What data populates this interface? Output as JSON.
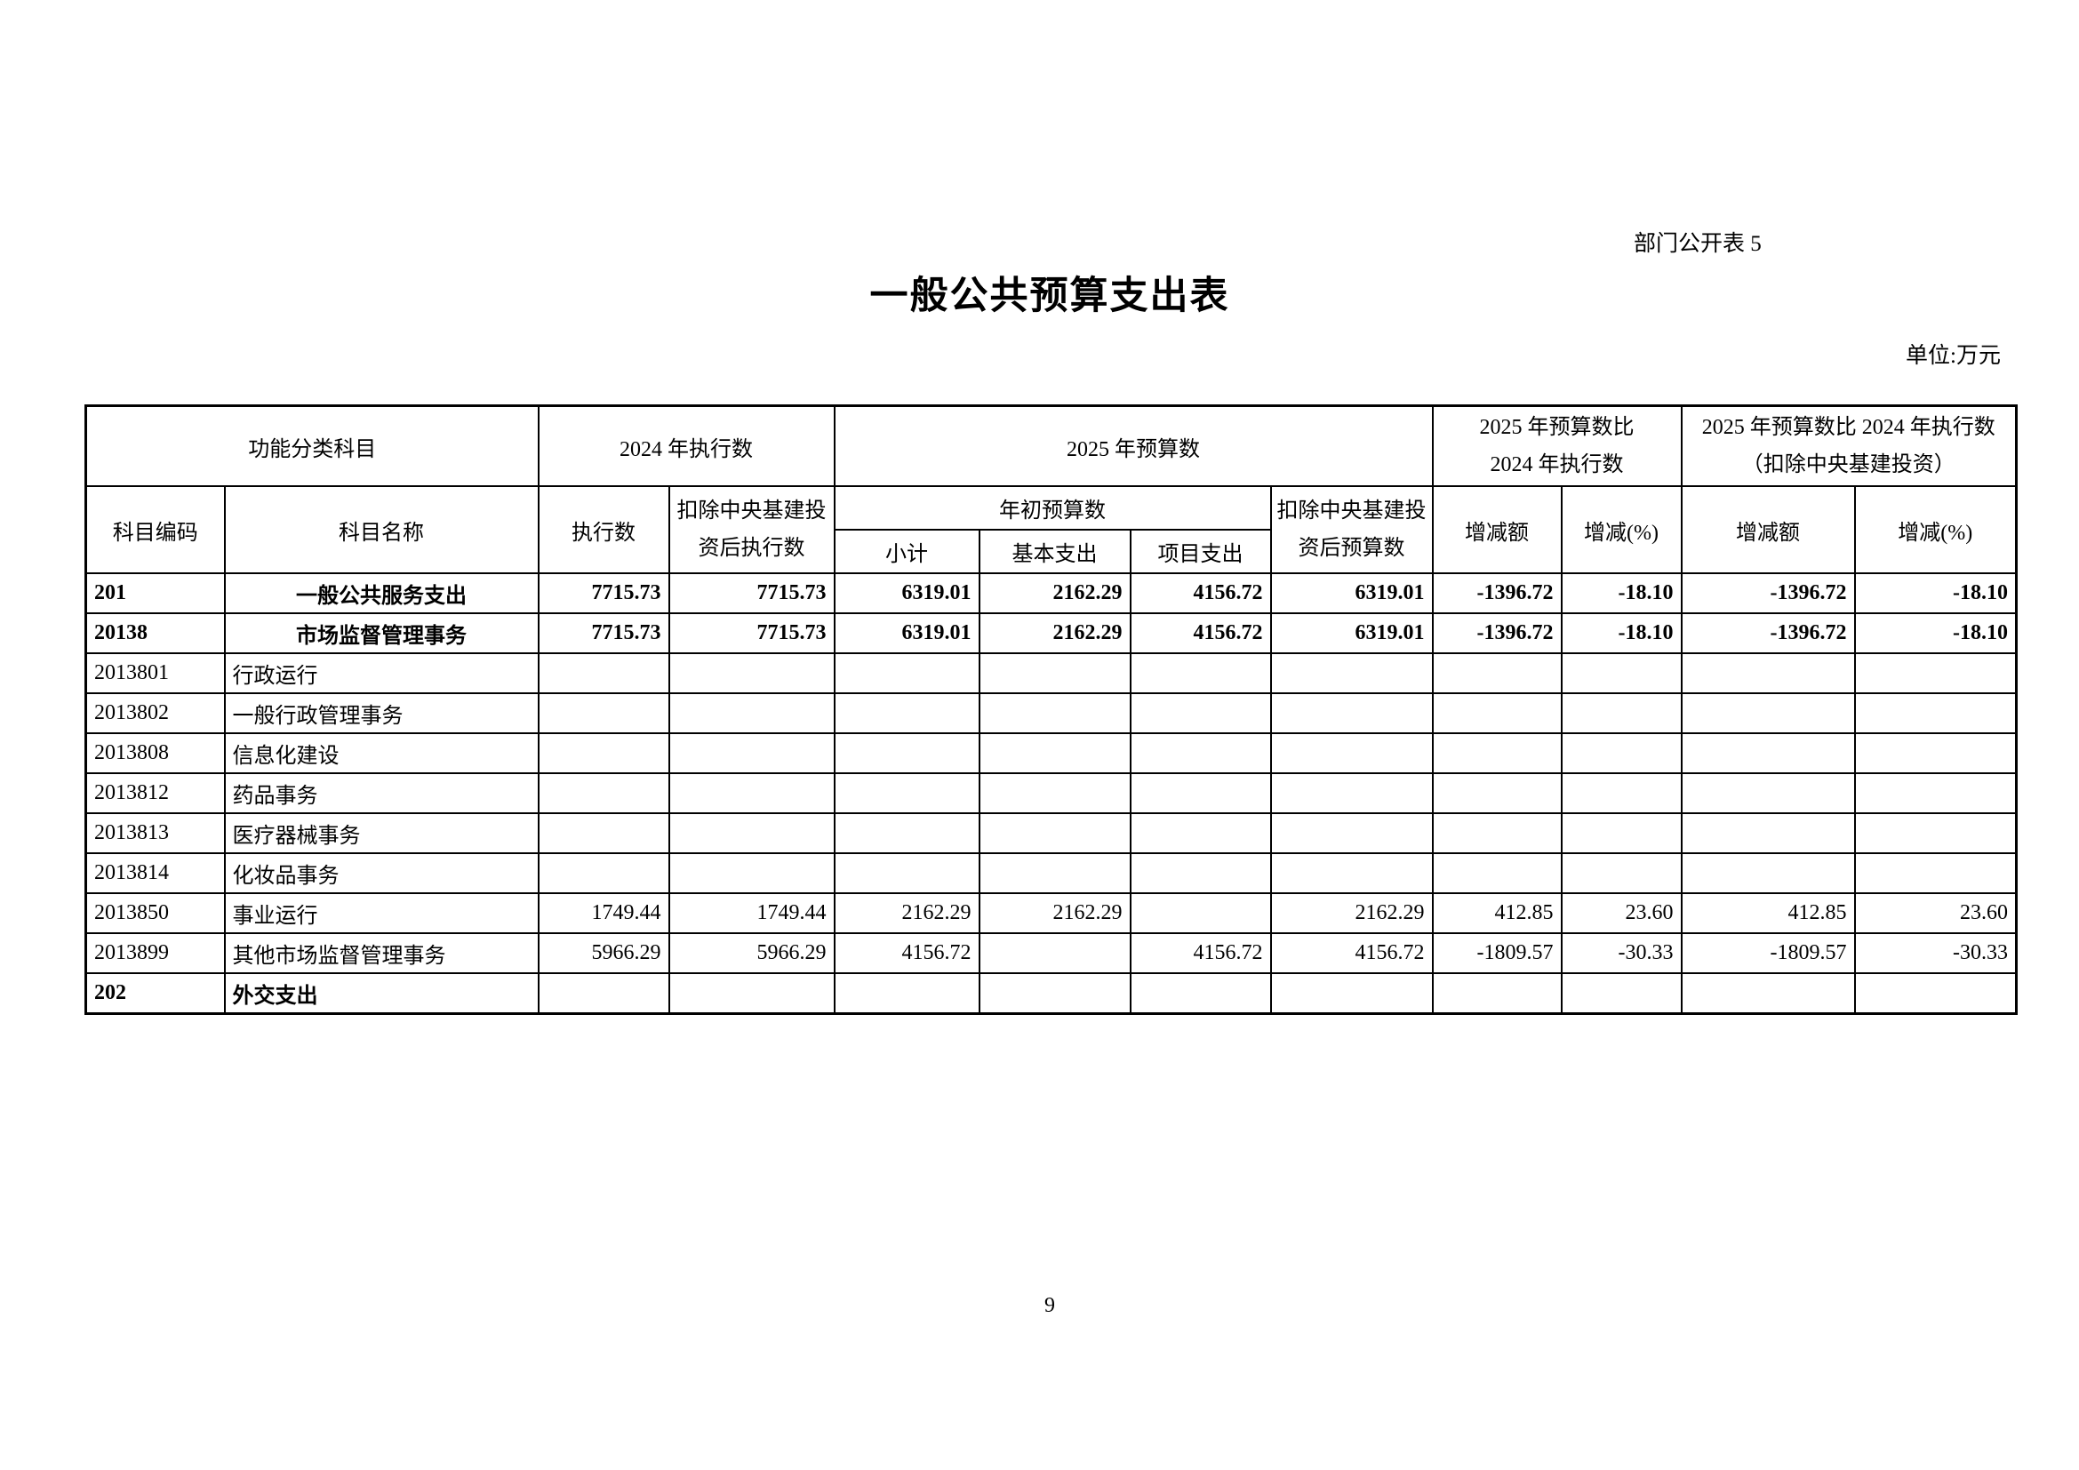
{
  "page": {
    "corner_note": "部门公开表 5",
    "title": "一般公共预算支出表",
    "unit_note": "单位:万元",
    "page_number": "9"
  },
  "table": {
    "header": {
      "func_category": "功能分类科目",
      "exec_2024": "2024 年执行数",
      "budget_2025": "2025 年预算数",
      "cmp": {
        "line1": "2025 年预算数比",
        "line2": "2024 年执行数"
      },
      "cmp_adj": {
        "line1": "2025 年预算数比 2024 年执行数",
        "line2": "（扣除中央基建投资）"
      },
      "code": "科目编码",
      "name": "科目名称",
      "exec": "执行数",
      "exec_adj": {
        "line1": "扣除中央基建投",
        "line2": "资后执行数"
      },
      "initial_budget": "年初预算数",
      "budget_adj": {
        "line1": "扣除中央基建投",
        "line2": "资后预算数"
      },
      "change_amount_1": "增减额",
      "change_pct_1": "增减(%)",
      "change_amount_2": "增减额",
      "change_pct_2": "增减(%)",
      "subtotal": "小计",
      "basic": "基本支出",
      "project": "项目支出"
    },
    "rows": [
      {
        "code": "201",
        "name": "一般公共服务支出",
        "bold": true,
        "name_align": "center",
        "values": [
          "7715.73",
          "7715.73",
          "6319.01",
          "2162.29",
          "4156.72",
          "6319.01",
          "-1396.72",
          "-18.10",
          "-1396.72",
          "-18.10"
        ]
      },
      {
        "code": "20138",
        "name": "市场监督管理事务",
        "bold": true,
        "name_align": "center",
        "values": [
          "7715.73",
          "7715.73",
          "6319.01",
          "2162.29",
          "4156.72",
          "6319.01",
          "-1396.72",
          "-18.10",
          "-1396.72",
          "-18.10"
        ]
      },
      {
        "code": "2013801",
        "name": "行政运行",
        "bold": false,
        "name_align": "left",
        "values": [
          "",
          "",
          "",
          "",
          "",
          "",
          "",
          "",
          "",
          ""
        ]
      },
      {
        "code": "2013802",
        "name": "一般行政管理事务",
        "bold": false,
        "name_align": "left",
        "values": [
          "",
          "",
          "",
          "",
          "",
          "",
          "",
          "",
          "",
          ""
        ]
      },
      {
        "code": "2013808",
        "name": "信息化建设",
        "bold": false,
        "name_align": "left",
        "values": [
          "",
          "",
          "",
          "",
          "",
          "",
          "",
          "",
          "",
          ""
        ]
      },
      {
        "code": "2013812",
        "name": "药品事务",
        "bold": false,
        "name_align": "left",
        "values": [
          "",
          "",
          "",
          "",
          "",
          "",
          "",
          "",
          "",
          ""
        ]
      },
      {
        "code": "2013813",
        "name": "医疗器械事务",
        "bold": false,
        "name_align": "left",
        "values": [
          "",
          "",
          "",
          "",
          "",
          "",
          "",
          "",
          "",
          ""
        ]
      },
      {
        "code": "2013814",
        "name": "化妆品事务",
        "bold": false,
        "name_align": "left",
        "values": [
          "",
          "",
          "",
          "",
          "",
          "",
          "",
          "",
          "",
          ""
        ]
      },
      {
        "code": "2013850",
        "name": "事业运行",
        "bold": false,
        "name_align": "left",
        "values": [
          "1749.44",
          "1749.44",
          "2162.29",
          "2162.29",
          "",
          "2162.29",
          "412.85",
          "23.60",
          "412.85",
          "23.60"
        ]
      },
      {
        "code": "2013899",
        "name": "其他市场监督管理事务",
        "bold": false,
        "name_align": "left",
        "values": [
          "5966.29",
          "5966.29",
          "4156.72",
          "",
          "4156.72",
          "4156.72",
          "-1809.57",
          "-30.33",
          "-1809.57",
          "-30.33"
        ]
      },
      {
        "code": "202",
        "name": "外交支出",
        "bold": true,
        "name_align": "left",
        "values": [
          "",
          "",
          "",
          "",
          "",
          "",
          "",
          "",
          "",
          ""
        ]
      }
    ]
  }
}
